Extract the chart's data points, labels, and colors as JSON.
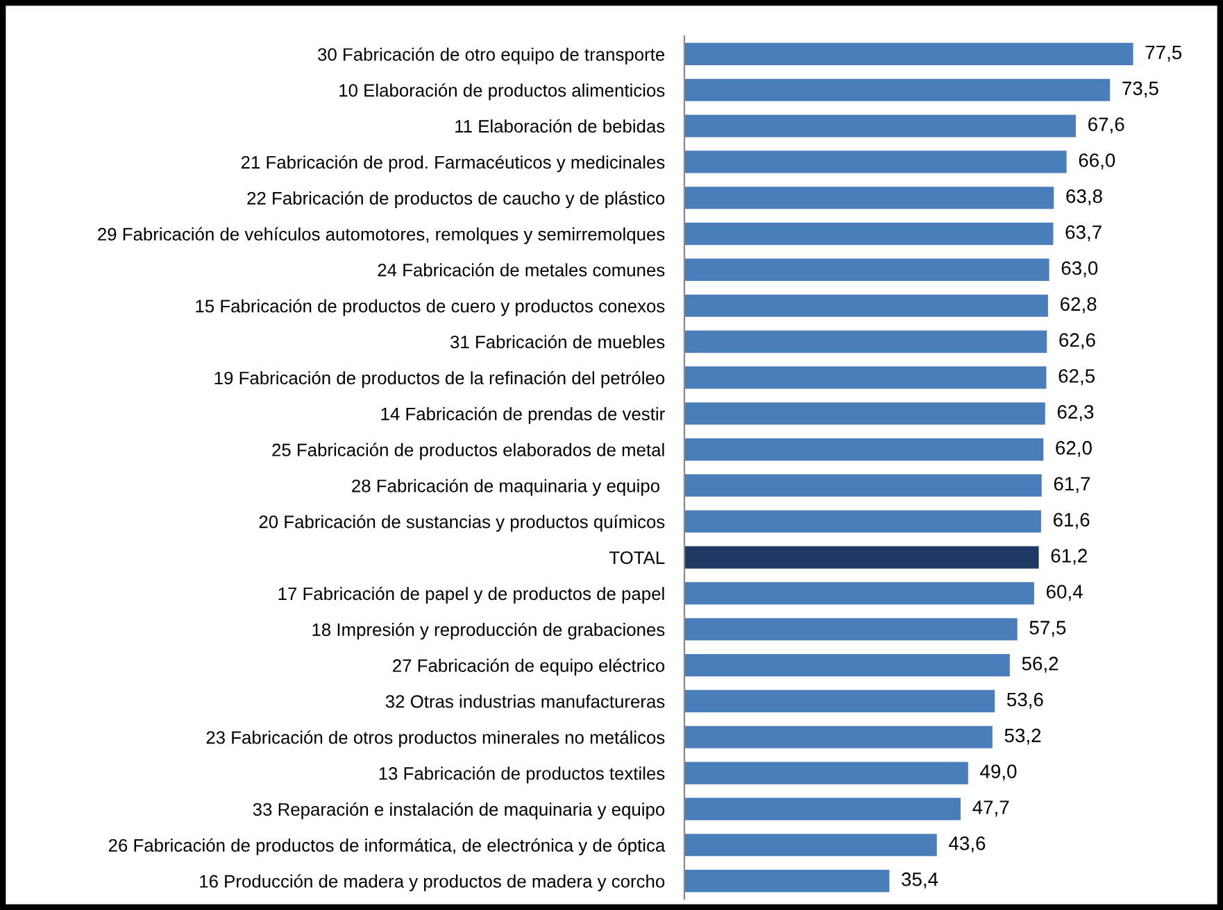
{
  "chart_data": {
    "type": "bar",
    "orientation": "horizontal",
    "categories": [
      "30 Fabricación de otro equipo de transporte",
      "10 Elaboración de productos alimenticios",
      "11 Elaboración de bebidas",
      "21 Fabricación de prod. Farmacéuticos y medicinales",
      "22 Fabricación de productos de caucho y de plástico",
      "29 Fabricación de vehículos automotores, remolques y semirremolques",
      "24 Fabricación de metales comunes",
      "15 Fabricación de productos de cuero y productos conexos",
      "31 Fabricación de muebles",
      "19 Fabricación de productos de la refinación del petróleo",
      "14 Fabricación de prendas de vestir",
      "25 Fabricación de productos elaborados de metal",
      "28 Fabricación de maquinaria y equipo ",
      "20 Fabricación de sustancias y productos químicos",
      "TOTAL",
      "17 Fabricación de papel y de productos de papel",
      "18 Impresión y reproducción de grabaciones",
      "27 Fabricación de equipo eléctrico",
      "32 Otras industrias manufactureras",
      "23 Fabricación de otros productos minerales no metálicos",
      "13 Fabricación de productos textiles",
      "33 Reparación e instalación de maquinaria y equipo",
      "26 Fabricación de productos de informática, de electrónica y de óptica",
      "16 Producción de madera y productos de madera y corcho"
    ],
    "values": [
      77.5,
      73.5,
      67.6,
      66.0,
      63.8,
      63.7,
      63.0,
      62.8,
      62.6,
      62.5,
      62.3,
      62.0,
      61.7,
      61.6,
      61.2,
      60.4,
      57.5,
      56.2,
      53.6,
      53.2,
      49.0,
      47.7,
      43.6,
      35.4
    ],
    "value_labels": [
      "77,5",
      "73,5",
      "67,6",
      "66,0",
      "63,8",
      "63,7",
      "63,0",
      "62,8",
      "62,6",
      "62,5",
      "62,3",
      "62,0",
      "61,7",
      "61,6",
      "61,2",
      "60,4",
      "57,5",
      "56,2",
      "53,6",
      "53,2",
      "49,0",
      "47,7",
      "43,6",
      "35,4"
    ],
    "colors": [
      "#4a7ebb",
      "#4a7ebb",
      "#4a7ebb",
      "#4a7ebb",
      "#4a7ebb",
      "#4a7ebb",
      "#4a7ebb",
      "#4a7ebb",
      "#4a7ebb",
      "#4a7ebb",
      "#4a7ebb",
      "#4a7ebb",
      "#4a7ebb",
      "#4a7ebb",
      "#1f3864",
      "#4a7ebb",
      "#4a7ebb",
      "#4a7ebb",
      "#4a7ebb",
      "#4a7ebb",
      "#4a7ebb",
      "#4a7ebb",
      "#4a7ebb",
      "#4a7ebb"
    ]
  }
}
